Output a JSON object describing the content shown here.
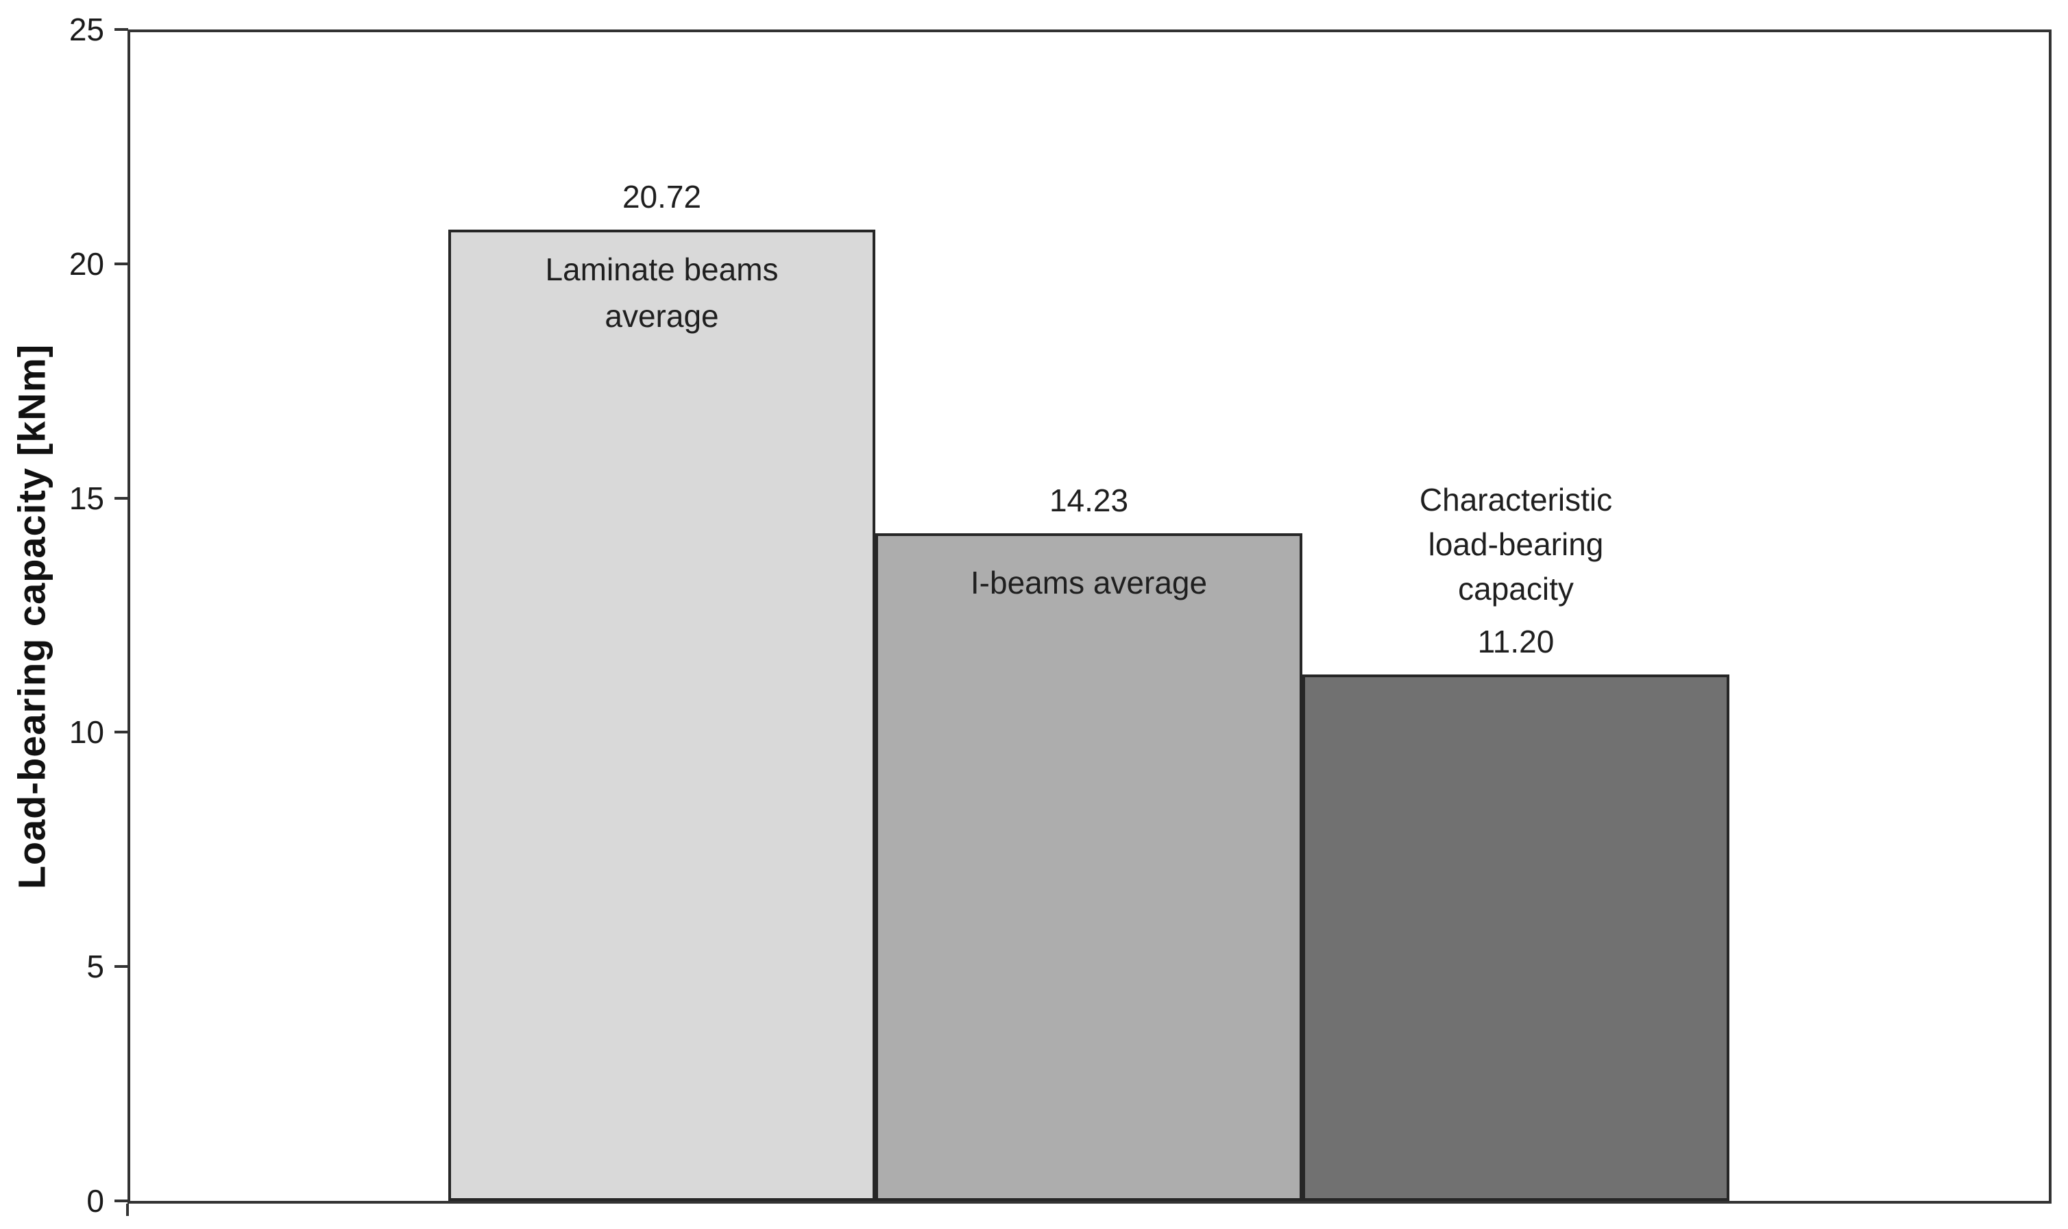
{
  "chart_data": {
    "type": "bar",
    "title": "",
    "ylabel": "Load-bearing capacity [kNm]",
    "xlabel": "",
    "ylim": [
      0,
      25
    ],
    "yticks": [
      0,
      5,
      10,
      15,
      20,
      25
    ],
    "grid": false,
    "legend": "none",
    "categories": [
      "Laminate beams average",
      "I-beams average",
      "Characteristic load-bearing capacity"
    ],
    "values": [
      20.72,
      14.23,
      11.2
    ],
    "bars": [
      {
        "slug": "laminate-beams-average",
        "category_lines": [
          "Laminate beams",
          "average"
        ],
        "value": 20.72,
        "value_label": "20.72",
        "fill": "#d9d9d9",
        "category_placement": "inside"
      },
      {
        "slug": "i-beams-average",
        "category_lines": [
          "I-beams average"
        ],
        "value": 14.23,
        "value_label": "14.23",
        "fill": "#adadad",
        "category_placement": "inside"
      },
      {
        "slug": "characteristic-load-bearing-capacity",
        "category_lines": [
          "Characteristic",
          "load-bearing",
          "capacity"
        ],
        "value": 11.2,
        "value_label": "11.20",
        "fill": "#717171",
        "category_placement": "above"
      }
    ],
    "colors": {
      "background": "#ffffff",
      "axis": "#333333",
      "bar_border": "#262626",
      "text": "#1a1a1a"
    }
  }
}
